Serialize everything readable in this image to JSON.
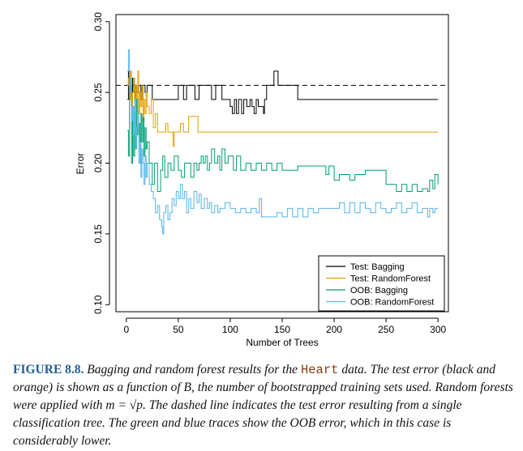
{
  "chart_data": {
    "type": "line",
    "title": "",
    "xlabel": "Number of Trees",
    "ylabel": "Error",
    "xlim": [
      -10,
      310
    ],
    "ylim": [
      0.095,
      0.305
    ],
    "xticks": [
      0,
      50,
      100,
      150,
      200,
      250,
      300
    ],
    "yticks": [
      0.1,
      0.15,
      0.2,
      0.25,
      0.3
    ],
    "ytick_labels": [
      "0.10",
      "0.15",
      "0.20",
      "0.25",
      "0.30"
    ],
    "reference_line": {
      "label": "single classification tree test error",
      "value": 0.255,
      "style": "dashed"
    },
    "legend_position": "bottom-right",
    "series": [
      {
        "name": "Test: Bagging",
        "color": "#000000",
        "points": [
          [
            1,
            0.245
          ],
          [
            2,
            0.265
          ],
          [
            3,
            0.25
          ],
          [
            4,
            0.255
          ],
          [
            5,
            0.24
          ],
          [
            6,
            0.26
          ],
          [
            7,
            0.25
          ],
          [
            8,
            0.245
          ],
          [
            9,
            0.255
          ],
          [
            10,
            0.25
          ],
          [
            12,
            0.255
          ],
          [
            14,
            0.245
          ],
          [
            16,
            0.255
          ],
          [
            18,
            0.25
          ],
          [
            20,
            0.255
          ],
          [
            25,
            0.245
          ],
          [
            30,
            0.245
          ],
          [
            40,
            0.245
          ],
          [
            48,
            0.245
          ],
          [
            50,
            0.255
          ],
          [
            55,
            0.245
          ],
          [
            58,
            0.255
          ],
          [
            62,
            0.255
          ],
          [
            66,
            0.245
          ],
          [
            70,
            0.255
          ],
          [
            78,
            0.255
          ],
          [
            82,
            0.245
          ],
          [
            86,
            0.255
          ],
          [
            88,
            0.255
          ],
          [
            92,
            0.245
          ],
          [
            97,
            0.245
          ],
          [
            100,
            0.24
          ],
          [
            102,
            0.235
          ],
          [
            104,
            0.245
          ],
          [
            106,
            0.235
          ],
          [
            108,
            0.245
          ],
          [
            111,
            0.235
          ],
          [
            113,
            0.245
          ],
          [
            116,
            0.24
          ],
          [
            119,
            0.245
          ],
          [
            121,
            0.24
          ],
          [
            123,
            0.235
          ],
          [
            125,
            0.245
          ],
          [
            127,
            0.24
          ],
          [
            130,
            0.24
          ],
          [
            132,
            0.235
          ],
          [
            133,
            0.245
          ],
          [
            135,
            0.255
          ],
          [
            140,
            0.255
          ],
          [
            142,
            0.265
          ],
          [
            145,
            0.265
          ],
          [
            146,
            0.255
          ],
          [
            150,
            0.255
          ],
          [
            155,
            0.255
          ],
          [
            160,
            0.255
          ],
          [
            163,
            0.255
          ],
          [
            165,
            0.245
          ],
          [
            180,
            0.245
          ],
          [
            200,
            0.245
          ],
          [
            250,
            0.245
          ],
          [
            300,
            0.245
          ]
        ]
      },
      {
        "name": "Test: RandomForest",
        "color": "#e69f00",
        "points": [
          [
            1,
            0.255
          ],
          [
            2,
            0.26
          ],
          [
            3,
            0.245
          ],
          [
            4,
            0.265
          ],
          [
            5,
            0.24
          ],
          [
            6,
            0.25
          ],
          [
            7,
            0.26
          ],
          [
            8,
            0.235
          ],
          [
            9,
            0.255
          ],
          [
            10,
            0.245
          ],
          [
            11,
            0.265
          ],
          [
            12,
            0.235
          ],
          [
            13,
            0.25
          ],
          [
            14,
            0.24
          ],
          [
            15,
            0.255
          ],
          [
            16,
            0.23
          ],
          [
            17,
            0.245
          ],
          [
            18,
            0.235
          ],
          [
            19,
            0.25
          ],
          [
            20,
            0.24
          ],
          [
            22,
            0.235
          ],
          [
            24,
            0.245
          ],
          [
            26,
            0.225
          ],
          [
            28,
            0.235
          ],
          [
            30,
            0.222
          ],
          [
            34,
            0.222
          ],
          [
            36,
            0.222
          ],
          [
            38,
            0.228
          ],
          [
            40,
            0.222
          ],
          [
            44,
            0.222
          ],
          [
            45,
            0.212
          ],
          [
            46,
            0.222
          ],
          [
            50,
            0.222
          ],
          [
            52,
            0.228
          ],
          [
            55,
            0.222
          ],
          [
            58,
            0.222
          ],
          [
            60,
            0.233
          ],
          [
            65,
            0.233
          ],
          [
            68,
            0.233
          ],
          [
            69,
            0.222
          ],
          [
            80,
            0.222
          ],
          [
            100,
            0.222
          ],
          [
            150,
            0.222
          ],
          [
            200,
            0.222
          ],
          [
            250,
            0.222
          ],
          [
            300,
            0.222
          ]
        ]
      },
      {
        "name": "OOB: Bagging",
        "color": "#009e73",
        "points": [
          [
            1,
            0.223
          ],
          [
            2,
            0.205
          ],
          [
            3,
            0.26
          ],
          [
            4,
            0.25
          ],
          [
            5,
            0.2
          ],
          [
            6,
            0.24
          ],
          [
            7,
            0.205
          ],
          [
            8,
            0.235
          ],
          [
            9,
            0.21
          ],
          [
            10,
            0.245
          ],
          [
            11,
            0.22
          ],
          [
            12,
            0.228
          ],
          [
            13,
            0.2
          ],
          [
            14,
            0.235
          ],
          [
            15,
            0.215
          ],
          [
            16,
            0.232
          ],
          [
            17,
            0.205
          ],
          [
            18,
            0.225
          ],
          [
            19,
            0.21
          ],
          [
            20,
            0.215
          ],
          [
            22,
            0.2
          ],
          [
            24,
            0.2
          ],
          [
            25,
            0.185
          ],
          [
            27,
            0.2
          ],
          [
            30,
            0.18
          ],
          [
            33,
            0.195
          ],
          [
            35,
            0.205
          ],
          [
            37,
            0.19
          ],
          [
            40,
            0.2
          ],
          [
            43,
            0.195
          ],
          [
            46,
            0.205
          ],
          [
            50,
            0.195
          ],
          [
            53,
            0.19
          ],
          [
            56,
            0.2
          ],
          [
            60,
            0.2
          ],
          [
            62,
            0.19
          ],
          [
            65,
            0.2
          ],
          [
            68,
            0.195
          ],
          [
            70,
            0.2
          ],
          [
            72,
            0.205
          ],
          [
            74,
            0.2
          ],
          [
            76,
            0.205
          ],
          [
            78,
            0.195
          ],
          [
            80,
            0.2
          ],
          [
            82,
            0.21
          ],
          [
            85,
            0.2
          ],
          [
            88,
            0.205
          ],
          [
            90,
            0.195
          ],
          [
            92,
            0.21
          ],
          [
            95,
            0.2
          ],
          [
            98,
            0.205
          ],
          [
            100,
            0.205
          ],
          [
            103,
            0.195
          ],
          [
            106,
            0.205
          ],
          [
            110,
            0.195
          ],
          [
            115,
            0.2
          ],
          [
            120,
            0.195
          ],
          [
            125,
            0.2
          ],
          [
            130,
            0.195
          ],
          [
            135,
            0.2
          ],
          [
            140,
            0.195
          ],
          [
            145,
            0.2
          ],
          [
            150,
            0.195
          ],
          [
            160,
            0.195
          ],
          [
            165,
            0.198
          ],
          [
            170,
            0.198
          ],
          [
            180,
            0.198
          ],
          [
            190,
            0.198
          ],
          [
            192,
            0.192
          ],
          [
            195,
            0.198
          ],
          [
            200,
            0.188
          ],
          [
            205,
            0.192
          ],
          [
            210,
            0.192
          ],
          [
            215,
            0.188
          ],
          [
            220,
            0.192
          ],
          [
            225,
            0.192
          ],
          [
            230,
            0.195
          ],
          [
            235,
            0.195
          ],
          [
            240,
            0.195
          ],
          [
            245,
            0.195
          ],
          [
            250,
            0.185
          ],
          [
            255,
            0.185
          ],
          [
            260,
            0.18
          ],
          [
            265,
            0.185
          ],
          [
            270,
            0.18
          ],
          [
            275,
            0.185
          ],
          [
            280,
            0.18
          ],
          [
            285,
            0.182
          ],
          [
            290,
            0.18
          ],
          [
            292,
            0.188
          ],
          [
            295,
            0.182
          ],
          [
            297,
            0.192
          ],
          [
            300,
            0.185
          ]
        ]
      },
      {
        "name": "OOB: RandomForest",
        "color": "#56b4e9",
        "points": [
          [
            1,
            0.265
          ],
          [
            2,
            0.28
          ],
          [
            3,
            0.25
          ],
          [
            4,
            0.26
          ],
          [
            5,
            0.23
          ],
          [
            6,
            0.24
          ],
          [
            7,
            0.22
          ],
          [
            8,
            0.245
          ],
          [
            9,
            0.21
          ],
          [
            10,
            0.225
          ],
          [
            11,
            0.235
          ],
          [
            12,
            0.2
          ],
          [
            13,
            0.215
          ],
          [
            14,
            0.19
          ],
          [
            15,
            0.21
          ],
          [
            16,
            0.2
          ],
          [
            17,
            0.185
          ],
          [
            18,
            0.205
          ],
          [
            19,
            0.19
          ],
          [
            20,
            0.2
          ],
          [
            22,
            0.185
          ],
          [
            24,
            0.18
          ],
          [
            26,
            0.175
          ],
          [
            28,
            0.165
          ],
          [
            30,
            0.17
          ],
          [
            32,
            0.16
          ],
          [
            34,
            0.155
          ],
          [
            35,
            0.15
          ],
          [
            36,
            0.165
          ],
          [
            38,
            0.17
          ],
          [
            40,
            0.16
          ],
          [
            42,
            0.165
          ],
          [
            44,
            0.175
          ],
          [
            46,
            0.17
          ],
          [
            48,
            0.18
          ],
          [
            50,
            0.175
          ],
          [
            52,
            0.185
          ],
          [
            54,
            0.175
          ],
          [
            56,
            0.18
          ],
          [
            58,
            0.165
          ],
          [
            60,
            0.175
          ],
          [
            62,
            0.168
          ],
          [
            65,
            0.18
          ],
          [
            68,
            0.172
          ],
          [
            70,
            0.178
          ],
          [
            72,
            0.168
          ],
          [
            75,
            0.175
          ],
          [
            78,
            0.168
          ],
          [
            80,
            0.172
          ],
          [
            82,
            0.165
          ],
          [
            85,
            0.17
          ],
          [
            88,
            0.165
          ],
          [
            90,
            0.168
          ],
          [
            95,
            0.172
          ],
          [
            100,
            0.168
          ],
          [
            105,
            0.165
          ],
          [
            110,
            0.168
          ],
          [
            115,
            0.165
          ],
          [
            120,
            0.168
          ],
          [
            125,
            0.165
          ],
          [
            128,
            0.175
          ],
          [
            130,
            0.162
          ],
          [
            135,
            0.162
          ],
          [
            140,
            0.162
          ],
          [
            145,
            0.165
          ],
          [
            150,
            0.162
          ],
          [
            155,
            0.168
          ],
          [
            160,
            0.162
          ],
          [
            165,
            0.168
          ],
          [
            170,
            0.162
          ],
          [
            175,
            0.168
          ],
          [
            180,
            0.165
          ],
          [
            185,
            0.168
          ],
          [
            190,
            0.168
          ],
          [
            195,
            0.168
          ],
          [
            200,
            0.168
          ],
          [
            205,
            0.172
          ],
          [
            210,
            0.165
          ],
          [
            215,
            0.172
          ],
          [
            220,
            0.165
          ],
          [
            225,
            0.172
          ],
          [
            230,
            0.168
          ],
          [
            235,
            0.165
          ],
          [
            240,
            0.172
          ],
          [
            245,
            0.168
          ],
          [
            250,
            0.165
          ],
          [
            255,
            0.168
          ],
          [
            260,
            0.172
          ],
          [
            265,
            0.165
          ],
          [
            270,
            0.168
          ],
          [
            275,
            0.172
          ],
          [
            280,
            0.165
          ],
          [
            285,
            0.168
          ],
          [
            290,
            0.162
          ],
          [
            292,
            0.168
          ],
          [
            295,
            0.165
          ],
          [
            297,
            0.168
          ],
          [
            300,
            0.168
          ]
        ]
      }
    ]
  },
  "caption": {
    "label": "FIGURE 8.8.",
    "part1": " Bagging and random forest results for the ",
    "heart": "Heart",
    "part2": " data. The test error (black and orange) is shown as a function of B, the number of bootstrapped training sets used. Random forests were applied with m = √p. The dashed line indicates the test error resulting from a single classification tree. The green and blue traces show the OOB error, which in this case is considerably lower."
  }
}
